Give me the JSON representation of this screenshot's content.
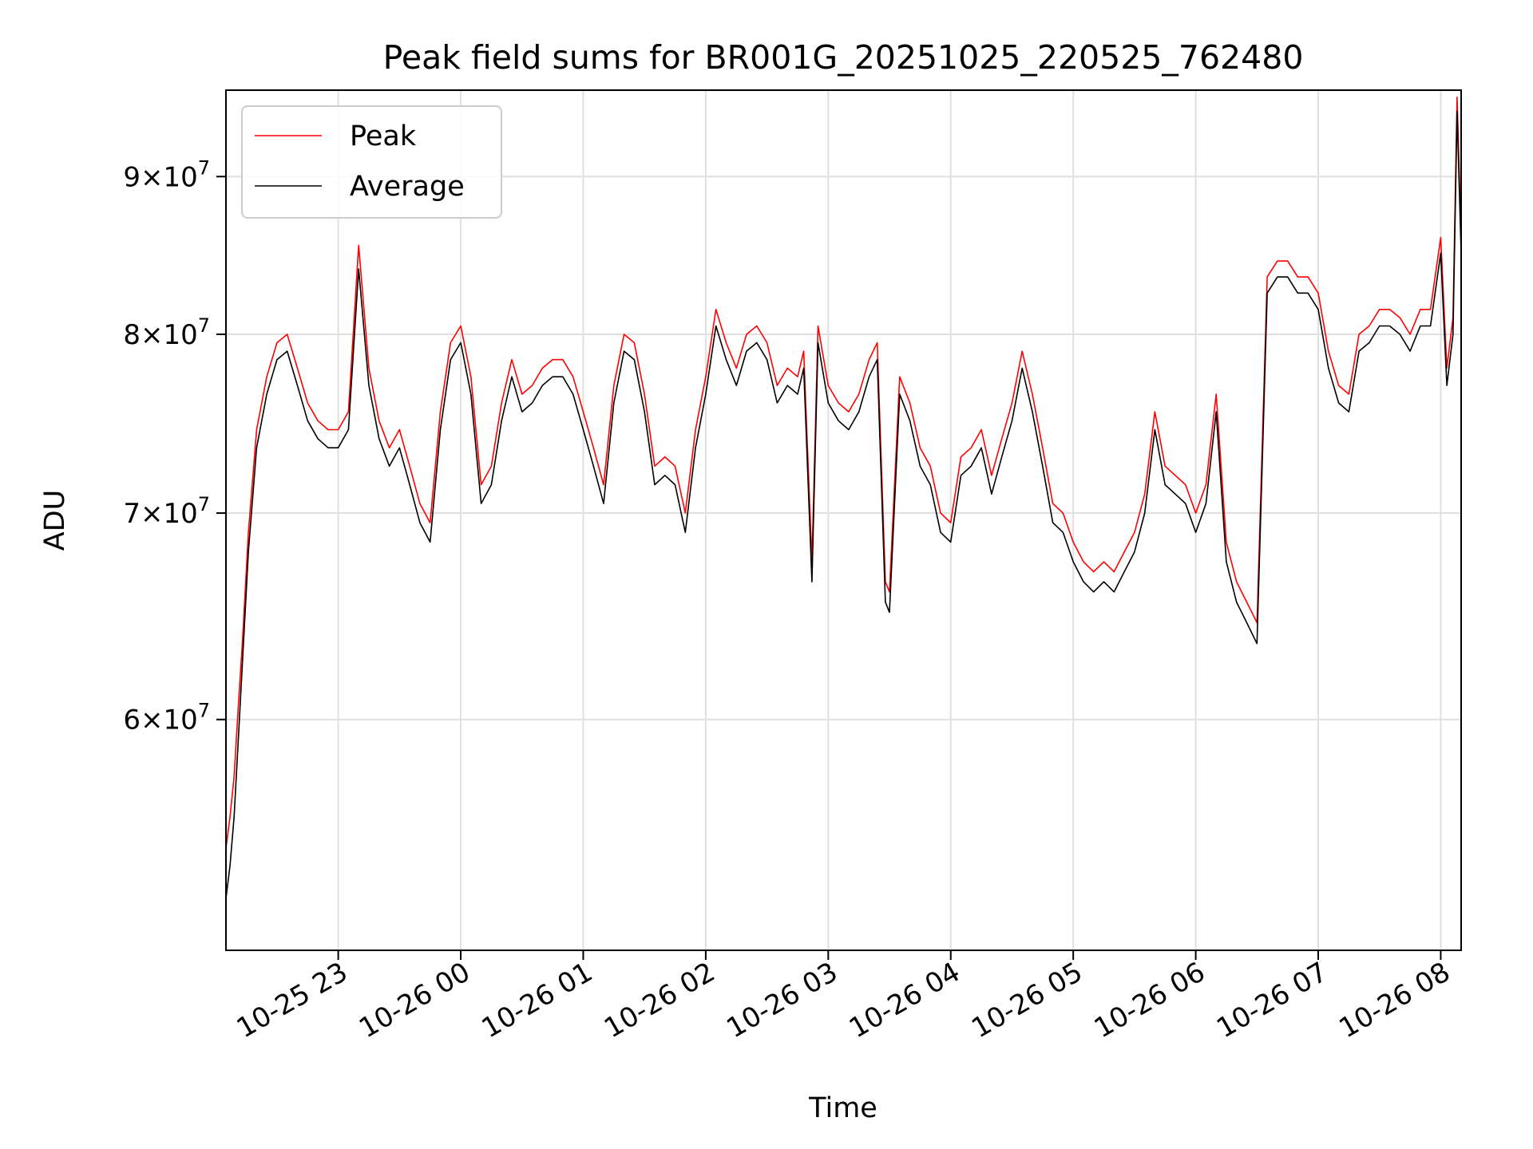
{
  "chart_data": {
    "type": "line",
    "title": "Peak field sums for BR001G_20251025_220525_762480",
    "xlabel": "Time",
    "ylabel": "ADU",
    "y_scale": "log",
    "x_range": [
      "10-25 22:05",
      "10-26 08:10"
    ],
    "ylim": [
      50500000,
      96000000
    ],
    "grid": true,
    "legend_position": "top-left",
    "x_ticks": [
      {
        "t": "10-25 23:00",
        "label": "10-25 23"
      },
      {
        "t": "10-26 00:00",
        "label": "10-26 00"
      },
      {
        "t": "10-26 01:00",
        "label": "10-26 01"
      },
      {
        "t": "10-26 02:00",
        "label": "10-26 02"
      },
      {
        "t": "10-26 03:00",
        "label": "10-26 03"
      },
      {
        "t": "10-26 04:00",
        "label": "10-26 04"
      },
      {
        "t": "10-26 05:00",
        "label": "10-26 05"
      },
      {
        "t": "10-26 06:00",
        "label": "10-26 06"
      },
      {
        "t": "10-26 07:00",
        "label": "10-26 07"
      },
      {
        "t": "10-26 08:00",
        "label": "10-26 08"
      }
    ],
    "y_ticks": [
      {
        "value": 60000000,
        "mantissa": "6",
        "base": "×10",
        "exp": "7"
      },
      {
        "value": 70000000,
        "mantissa": "7",
        "base": "×10",
        "exp": "7"
      },
      {
        "value": 80000000,
        "mantissa": "8",
        "base": "×10",
        "exp": "7"
      },
      {
        "value": 90000000,
        "mantissa": "9",
        "base": "×10",
        "exp": "7"
      }
    ],
    "x": [
      "10-25 22:05",
      "10-25 22:07",
      "10-25 22:09",
      "10-25 22:11",
      "10-25 22:13",
      "10-25 22:16",
      "10-25 22:20",
      "10-25 22:25",
      "10-25 22:30",
      "10-25 22:35",
      "10-25 22:40",
      "10-25 22:45",
      "10-25 22:50",
      "10-25 22:55",
      "10-25 23:00",
      "10-25 23:05",
      "10-25 23:10",
      "10-25 23:15",
      "10-25 23:20",
      "10-25 23:25",
      "10-25 23:30",
      "10-25 23:35",
      "10-25 23:40",
      "10-25 23:45",
      "10-25 23:50",
      "10-25 23:55",
      "10-26 00:00",
      "10-26 00:05",
      "10-26 00:10",
      "10-26 00:15",
      "10-26 00:20",
      "10-26 00:25",
      "10-26 00:30",
      "10-26 00:35",
      "10-26 00:40",
      "10-26 00:45",
      "10-26 00:50",
      "10-26 00:55",
      "10-26 01:00",
      "10-26 01:05",
      "10-26 01:10",
      "10-26 01:15",
      "10-26 01:20",
      "10-26 01:25",
      "10-26 01:30",
      "10-26 01:35",
      "10-26 01:40",
      "10-26 01:45",
      "10-26 01:50",
      "10-26 01:55",
      "10-26 02:00",
      "10-26 02:05",
      "10-26 02:10",
      "10-26 02:15",
      "10-26 02:20",
      "10-26 02:25",
      "10-26 02:30",
      "10-26 02:35",
      "10-26 02:40",
      "10-26 02:45",
      "10-26 02:48",
      "10-26 02:52",
      "10-26 02:55",
      "10-26 03:00",
      "10-26 03:05",
      "10-26 03:10",
      "10-26 03:15",
      "10-26 03:20",
      "10-26 03:24",
      "10-26 03:28",
      "10-26 03:30",
      "10-26 03:35",
      "10-26 03:40",
      "10-26 03:45",
      "10-26 03:50",
      "10-26 03:55",
      "10-26 04:00",
      "10-26 04:05",
      "10-26 04:10",
      "10-26 04:15",
      "10-26 04:20",
      "10-26 04:25",
      "10-26 04:30",
      "10-26 04:35",
      "10-26 04:40",
      "10-26 04:45",
      "10-26 04:50",
      "10-26 04:55",
      "10-26 05:00",
      "10-26 05:05",
      "10-26 05:10",
      "10-26 05:15",
      "10-26 05:20",
      "10-26 05:25",
      "10-26 05:30",
      "10-26 05:35",
      "10-26 05:40",
      "10-26 05:45",
      "10-26 05:50",
      "10-26 05:55",
      "10-26 06:00",
      "10-26 06:05",
      "10-26 06:10",
      "10-26 06:15",
      "10-26 06:20",
      "10-26 06:25",
      "10-26 06:30",
      "10-26 06:35",
      "10-26 06:40",
      "10-26 06:45",
      "10-26 06:50",
      "10-26 06:55",
      "10-26 07:00",
      "10-26 07:05",
      "10-26 07:10",
      "10-26 07:15",
      "10-26 07:20",
      "10-26 07:25",
      "10-26 07:30",
      "10-26 07:35",
      "10-26 07:40",
      "10-26 07:45",
      "10-26 07:50",
      "10-26 07:55",
      "10-26 08:00",
      "10-26 08:03",
      "10-26 08:06",
      "10-26 08:08",
      "10-26 08:10"
    ],
    "series": [
      {
        "name": "Peak",
        "color": "#ff0000",
        "values": [
          54500000,
          55800000,
          57500000,
          60500000,
          63500000,
          69000000,
          74500000,
          77500000,
          79500000,
          80000000,
          78000000,
          76000000,
          75000000,
          74500000,
          74500000,
          75500000,
          85500000,
          78000000,
          75000000,
          73500000,
          74500000,
          72500000,
          70500000,
          69500000,
          75500000,
          79500000,
          80500000,
          77500000,
          71500000,
          72500000,
          76000000,
          78500000,
          76500000,
          77000000,
          78000000,
          78500000,
          78500000,
          77500000,
          75500000,
          73500000,
          71500000,
          77000000,
          80000000,
          79500000,
          76500000,
          72500000,
          73000000,
          72500000,
          70000000,
          74500000,
          77500000,
          81500000,
          79500000,
          78000000,
          80000000,
          80500000,
          79500000,
          77000000,
          78000000,
          77500000,
          79000000,
          67500000,
          80500000,
          77000000,
          76000000,
          75500000,
          76500000,
          78500000,
          79500000,
          66500000,
          66000000,
          77500000,
          76000000,
          73500000,
          72500000,
          70000000,
          69500000,
          73000000,
          73500000,
          74500000,
          72000000,
          74000000,
          76000000,
          79000000,
          76500000,
          73500000,
          70500000,
          70000000,
          68500000,
          67500000,
          67000000,
          67500000,
          67000000,
          68000000,
          69000000,
          71000000,
          75500000,
          72500000,
          72000000,
          71500000,
          70000000,
          71500000,
          76500000,
          68500000,
          66500000,
          65500000,
          64500000,
          83500000,
          84500000,
          84500000,
          83500000,
          83500000,
          82500000,
          79000000,
          77000000,
          76500000,
          80000000,
          80500000,
          81500000,
          81500000,
          81000000,
          80000000,
          81500000,
          81500000,
          86000000,
          78000000,
          81000000,
          95500000,
          86000000
        ]
      },
      {
        "name": "Average",
        "color": "#000000",
        "values": [
          52500000,
          53800000,
          55800000,
          59000000,
          62500000,
          68000000,
          73500000,
          76500000,
          78500000,
          79000000,
          77000000,
          75000000,
          74000000,
          73500000,
          73500000,
          74500000,
          84000000,
          77000000,
          74000000,
          72500000,
          73500000,
          71500000,
          69500000,
          68500000,
          74500000,
          78500000,
          79500000,
          76500000,
          70500000,
          71500000,
          75000000,
          77500000,
          75500000,
          76000000,
          77000000,
          77500000,
          77500000,
          76500000,
          74500000,
          72500000,
          70500000,
          76000000,
          79000000,
          78500000,
          75500000,
          71500000,
          72000000,
          71500000,
          69000000,
          73500000,
          76500000,
          80500000,
          78500000,
          77000000,
          79000000,
          79500000,
          78500000,
          76000000,
          77000000,
          76500000,
          78000000,
          66500000,
          79500000,
          76000000,
          75000000,
          74500000,
          75500000,
          77500000,
          78500000,
          65500000,
          65000000,
          76500000,
          75000000,
          72500000,
          71500000,
          69000000,
          68500000,
          72000000,
          72500000,
          73500000,
          71000000,
          73000000,
          75000000,
          78000000,
          75500000,
          72500000,
          69500000,
          69000000,
          67500000,
          66500000,
          66000000,
          66500000,
          66000000,
          67000000,
          68000000,
          70000000,
          74500000,
          71500000,
          71000000,
          70500000,
          69000000,
          70500000,
          75500000,
          67500000,
          65500000,
          64500000,
          63500000,
          82500000,
          83500000,
          83500000,
          82500000,
          82500000,
          81500000,
          78000000,
          76000000,
          75500000,
          79000000,
          79500000,
          80500000,
          80500000,
          80000000,
          79000000,
          80500000,
          80500000,
          85000000,
          77000000,
          80000000,
          94500000,
          85000000
        ]
      }
    ]
  }
}
